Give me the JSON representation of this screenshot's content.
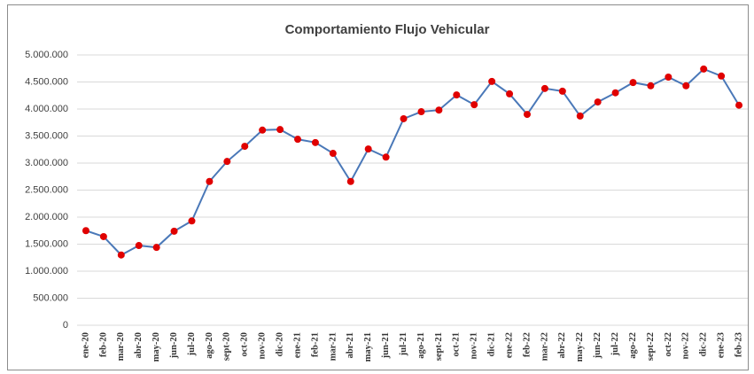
{
  "chart_data": {
    "type": "line",
    "title": "Comportamiento Flujo Vehicular",
    "categories": [
      "ene-20",
      "feb-20",
      "mar-20",
      "abr-20",
      "may-20",
      "jun-20",
      "jul-20",
      "ago-20",
      "sept-20",
      "oct-20",
      "nov-20",
      "dic-20",
      "ene-21",
      "feb-21",
      "mar-21",
      "abr-21",
      "may-21",
      "jun-21",
      "jul-21",
      "ago-21",
      "sept-21",
      "oct-21",
      "nov-21",
      "dic-21",
      "ene-22",
      "feb-22",
      "mar-22",
      "abr-22",
      "may-22",
      "jun-22",
      "jul-22",
      "ago-22",
      "sept-22",
      "oct-22",
      "nov-22",
      "dic-22",
      "ene-23",
      "feb-23"
    ],
    "series": [
      {
        "name": "Flujo Vehicular",
        "color": "#4a78b8",
        "marker_color": "#e00000",
        "values": [
          1750000,
          1640000,
          1300000,
          1475000,
          1440000,
          1740000,
          1930000,
          2660000,
          3030000,
          3310000,
          3610000,
          3620000,
          3440000,
          3380000,
          3180000,
          2660000,
          3260000,
          3110000,
          3820000,
          3950000,
          3980000,
          4260000,
          4080000,
          4510000,
          4280000,
          3900000,
          4380000,
          4330000,
          3870000,
          4130000,
          4300000,
          4490000,
          4430000,
          4590000,
          4430000,
          4740000,
          4610000,
          4070000
        ]
      }
    ],
    "ylim": [
      0,
      5000000
    ],
    "yticks": [
      0,
      {
        "value": 500000,
        "label": "500.000"
      },
      {
        "value": 1000000,
        "label": "1.000.000"
      },
      {
        "value": 1500000,
        "label": "1.500.000"
      },
      {
        "value": 2000000,
        "label": "2.000.000"
      },
      {
        "value": 2500000,
        "label": "2.500.000"
      },
      {
        "value": 3000000,
        "label": "3.000.000"
      },
      {
        "value": 3500000,
        "label": "3.500.000"
      },
      {
        "value": 4000000,
        "label": "4.000.000"
      },
      {
        "value": 4500000,
        "label": "4.500.000"
      },
      {
        "value": 5000000,
        "label": "5.000.000"
      }
    ],
    "grid": true
  }
}
